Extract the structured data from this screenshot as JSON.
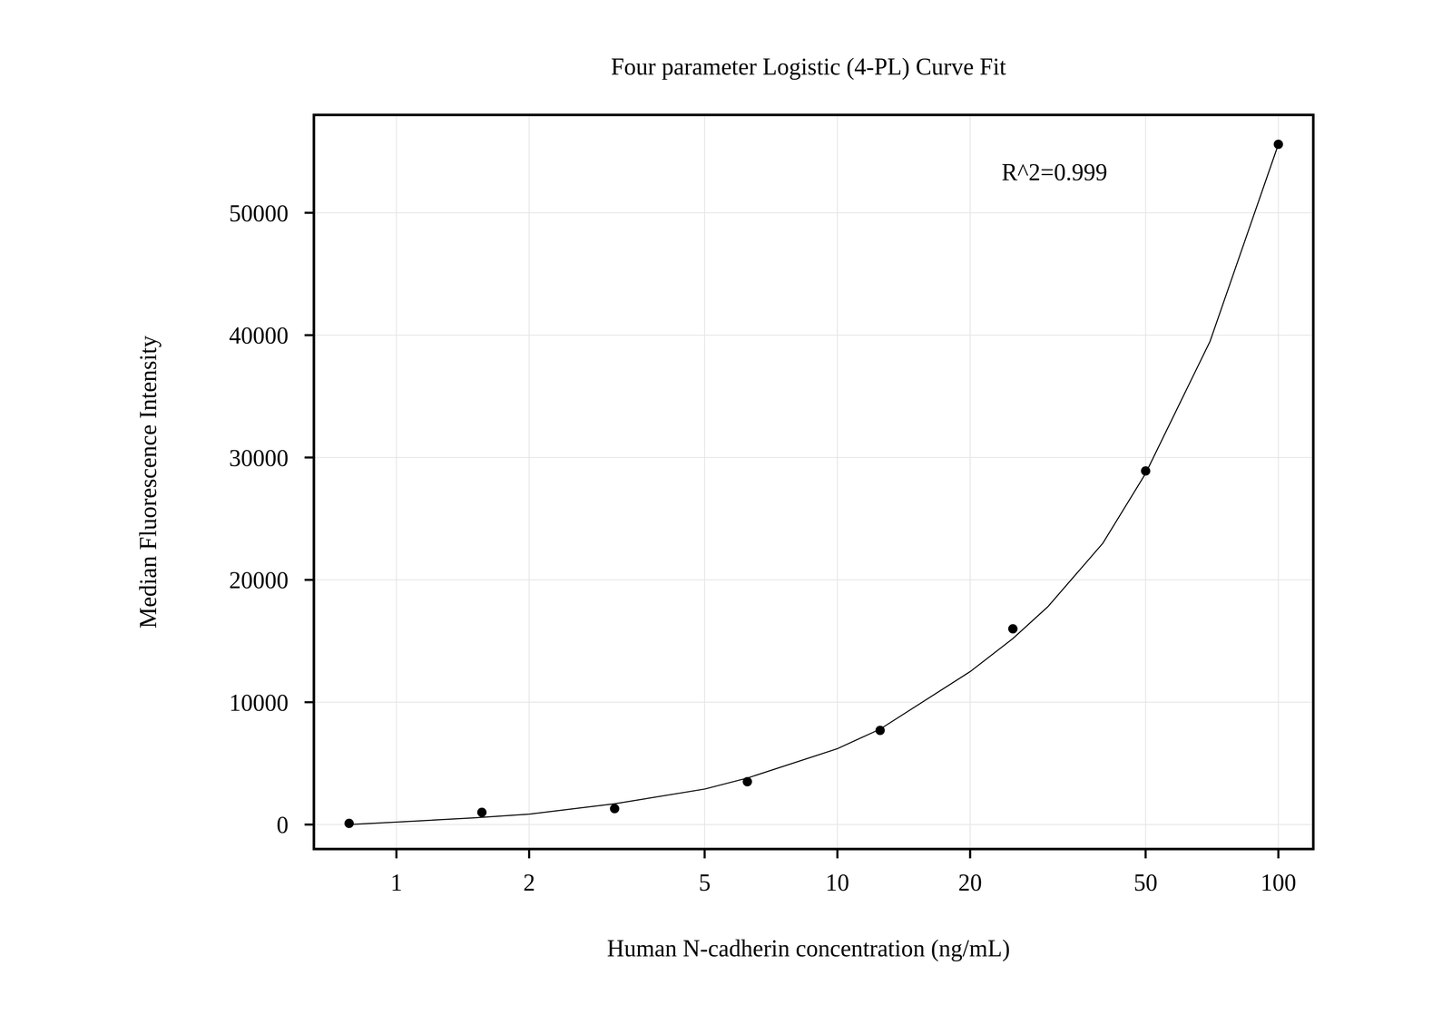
{
  "chart_data": {
    "type": "scatter",
    "title": "Four parameter Logistic (4-PL) Curve Fit",
    "x_label": "Human N-cadherin concentration (ng/mL)",
    "y_label": "Median Fluorescence Intensity",
    "annotation": "R^2=0.999",
    "log": "x",
    "grid": true,
    "xlim": [
      0.65,
      120
    ],
    "ylim": [
      -2000,
      58000
    ],
    "xticks": [
      1,
      2,
      5,
      10,
      20,
      50,
      100
    ],
    "yticks": [
      0,
      10000,
      20000,
      30000,
      40000,
      50000
    ],
    "series": [
      {
        "type": "scatter",
        "color": "#000000",
        "marker": "circle",
        "x": [
          0.78125,
          1.5625,
          3.125,
          6.25,
          12.5,
          25,
          50,
          100
        ],
        "values": [
          100,
          1000,
          1300,
          3500,
          7700,
          16000,
          28900,
          55600
        ]
      },
      {
        "type": "line",
        "color": "#000000",
        "line_style": "solid",
        "x": [
          0.78,
          1,
          1.5,
          2,
          3.125,
          5,
          6.25,
          10,
          12.5,
          20,
          25,
          30,
          40,
          50,
          70,
          100
        ],
        "values": [
          0,
          200,
          550,
          850,
          1700,
          2900,
          3800,
          6200,
          7800,
          12500,
          15200,
          17800,
          23000,
          28700,
          39500,
          55600
        ]
      }
    ]
  }
}
